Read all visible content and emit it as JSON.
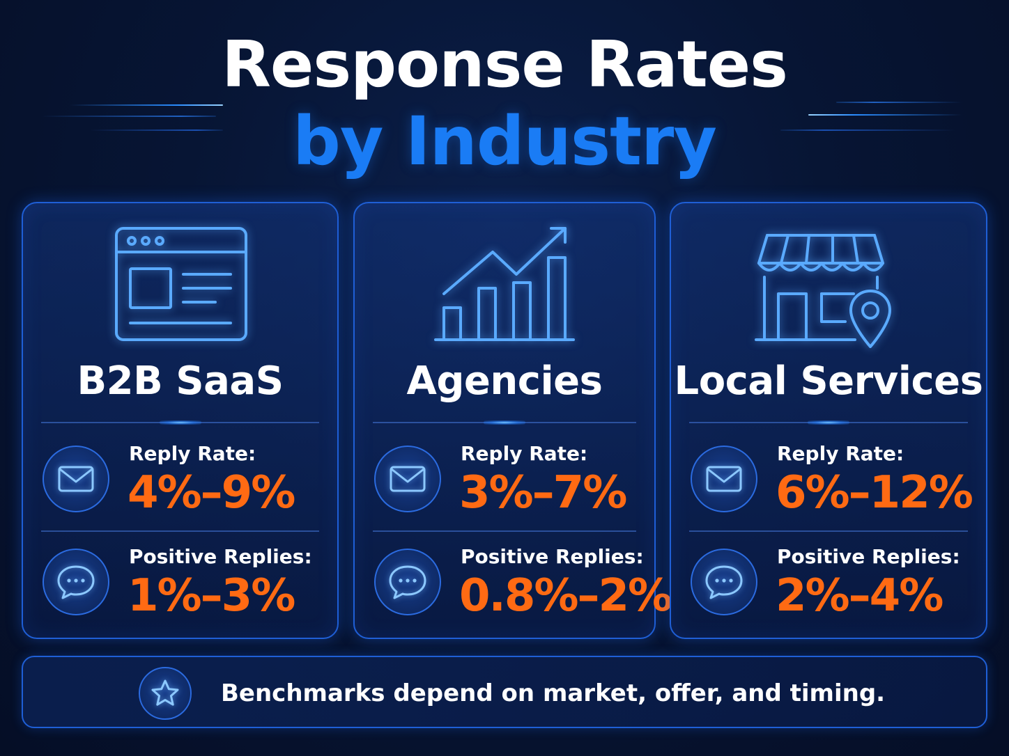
{
  "header": {
    "title_line1": "Response Rates",
    "title_line2": "by Industry"
  },
  "cards": [
    {
      "title": "B2B SaaS",
      "icon": "browser-window-icon",
      "reply_rate_label": "Reply Rate:",
      "reply_rate_value": "4%–9%",
      "positive_label": "Positive Replies:",
      "positive_value": "1%–3%"
    },
    {
      "title": "Agencies",
      "icon": "growth-chart-icon",
      "reply_rate_label": "Reply Rate:",
      "reply_rate_value": "3%–7%",
      "positive_label": "Positive Replies:",
      "positive_value": "0.8%–2%"
    },
    {
      "title": "Local Services",
      "icon": "storefront-location-icon",
      "reply_rate_label": "Reply Rate:",
      "reply_rate_value": "6%–12%",
      "positive_label": "Positive Replies:",
      "positive_value": "2%–4%"
    }
  ],
  "footer": {
    "icon": "star-icon",
    "note": "Benchmarks depend on market, offer, and timing."
  },
  "colors": {
    "background": "#071534",
    "accent_blue": "#1a7cf5",
    "value_orange": "#ff6a13",
    "border_blue": "#1f5fd6",
    "icon_blue": "#5aaaff"
  }
}
